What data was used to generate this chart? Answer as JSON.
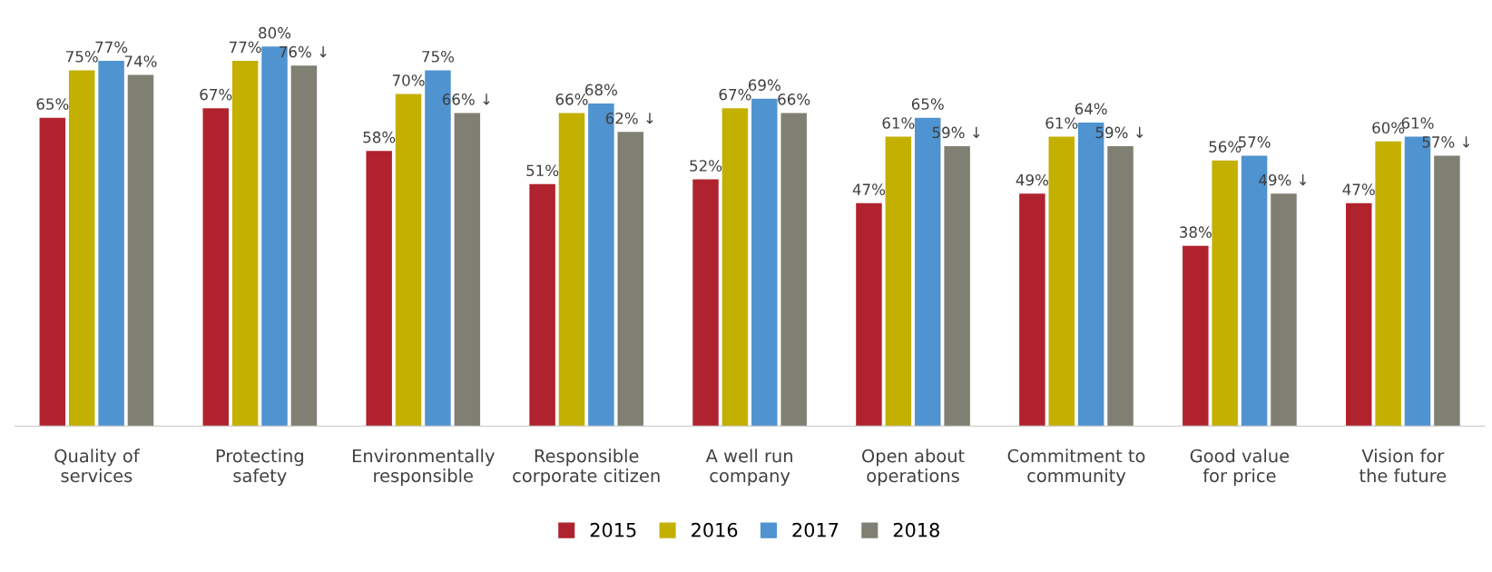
{
  "chart_data": {
    "type": "bar",
    "categories": [
      "Quality of\nservices",
      "Protecting\nsafety",
      "Environmentally\nresponsible",
      "Responsible\ncorporate citizen",
      "A well run\ncompany",
      "Open about\noperations",
      "Commitment to\ncommunity",
      "Good value\nfor price",
      "Vision for\nthe future"
    ],
    "series": [
      {
        "name": "2015",
        "color": "#b0232e",
        "values": [
          65,
          67,
          58,
          51,
          52,
          47,
          49,
          38,
          47
        ],
        "value_labels": [
          "65%",
          "67%",
          "58%",
          "51%",
          "52%",
          "47%",
          "49%",
          "38%",
          "47%"
        ]
      },
      {
        "name": "2016",
        "color": "#c3b000",
        "values": [
          75,
          77,
          70,
          66,
          67,
          61,
          61,
          56,
          60
        ],
        "value_labels": [
          "75%",
          "77%",
          "70%",
          "66%",
          "67%",
          "61%",
          "61%",
          "56%",
          "60%"
        ]
      },
      {
        "name": "2017",
        "color": "#4f93d0",
        "values": [
          77,
          80,
          75,
          68,
          69,
          65,
          64,
          57,
          61
        ],
        "value_labels": [
          "77%",
          "80%",
          "75%",
          "68%",
          "69%",
          "65%",
          "64%",
          "57%",
          "61%"
        ]
      },
      {
        "name": "2018",
        "color": "#7f7f73",
        "values": [
          74,
          76,
          66,
          62,
          66,
          59,
          59,
          49,
          57
        ],
        "value_labels": [
          "74%",
          "76% ↓",
          "66% ↓",
          "62% ↓",
          "66%",
          "59% ↓",
          "59% ↓",
          "49% ↓",
          "57% ↓"
        ]
      }
    ],
    "legend": "bottom",
    "grid": false
  }
}
